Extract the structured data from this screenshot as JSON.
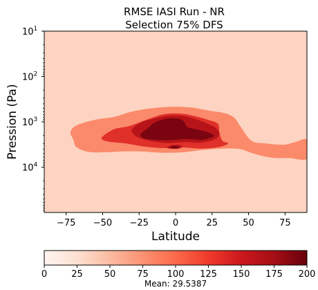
{
  "chart_data": {
    "type": "heatmap",
    "title": "RMSE  IASI Run - NR",
    "subtitle": "Selection 75% DFS",
    "xlabel": "Latitude",
    "ylabel": "Pression (Pa)",
    "x_ticks": [
      -75,
      -50,
      -25,
      0,
      25,
      50,
      75
    ],
    "x_tick_labels": [
      "−75",
      "−50",
      "−25",
      "0",
      "25",
      "50",
      "75"
    ],
    "xlim": [
      -90,
      90
    ],
    "y_scale": "log",
    "y_inverted": true,
    "ylim": [
      10,
      100000
    ],
    "y_ticks": [
      {
        "value": 10,
        "base": "10",
        "exp": "1"
      },
      {
        "value": 100,
        "base": "10",
        "exp": "2"
      },
      {
        "value": 1000,
        "base": "10",
        "exp": "3"
      },
      {
        "value": 10000,
        "base": "10",
        "exp": "4"
      }
    ],
    "colorbar": {
      "min": 0,
      "max": 200,
      "ticks": [
        0,
        25,
        50,
        75,
        100,
        125,
        150,
        175,
        200
      ],
      "colormap": "Reds",
      "stops": [
        "#fff5f0",
        "#fee0d2",
        "#fcbba1",
        "#fc9272",
        "#fb6a4a",
        "#ef3b2c",
        "#cb181d",
        "#a50f15",
        "#67000d"
      ]
    },
    "contour_levels": [
      {
        "level": 25,
        "color": "#fdd4c2"
      },
      {
        "level": 75,
        "color": "#fb8a6a"
      },
      {
        "level": 125,
        "color": "#e0302a"
      },
      {
        "level": 150,
        "color": "#b71419"
      },
      {
        "level": 175,
        "color": "#7a0510"
      }
    ],
    "background_level_color": "#fdd4c2",
    "contours": [
      {
        "level": 75,
        "points": [
          [
            -72,
            1700
          ],
          [
            -68,
            1200
          ],
          [
            -55,
            900
          ],
          [
            -42,
            780
          ],
          [
            -32,
            620
          ],
          [
            -20,
            520
          ],
          [
            -5,
            470
          ],
          [
            10,
            480
          ],
          [
            22,
            560
          ],
          [
            33,
            640
          ],
          [
            40,
            800
          ],
          [
            44,
            1200
          ],
          [
            52,
            2600
          ],
          [
            62,
            3000
          ],
          [
            74,
            3200
          ],
          [
            82,
            2800
          ],
          [
            90,
            2500
          ],
          [
            90,
            6500
          ],
          [
            78,
            6300
          ],
          [
            66,
            6200
          ],
          [
            54,
            5100
          ],
          [
            44,
            4000
          ],
          [
            32,
            3900
          ],
          [
            18,
            4200
          ],
          [
            5,
            4700
          ],
          [
            -10,
            4800
          ],
          [
            -24,
            4500
          ],
          [
            -36,
            4500
          ],
          [
            -48,
            4700
          ],
          [
            -60,
            4600
          ],
          [
            -68,
            3600
          ],
          [
            -70,
            2500
          ]
        ]
      },
      {
        "level": 125,
        "points": [
          [
            -50,
            2100
          ],
          [
            -42,
            1450
          ],
          [
            -32,
            1250
          ],
          [
            -20,
            900
          ],
          [
            -8,
            680
          ],
          [
            4,
            660
          ],
          [
            14,
            760
          ],
          [
            22,
            900
          ],
          [
            29,
            1100
          ],
          [
            30,
            1700
          ],
          [
            32,
            2600
          ],
          [
            36,
            3000
          ],
          [
            30,
            3600
          ],
          [
            18,
            3900
          ],
          [
            6,
            3700
          ],
          [
            -8,
            3800
          ],
          [
            -22,
            3500
          ],
          [
            -34,
            3000
          ],
          [
            -44,
            2800
          ],
          [
            -50,
            2500
          ]
        ]
      },
      {
        "level": 150,
        "points": [
          [
            -30,
            1500
          ],
          [
            -24,
            1050
          ],
          [
            -15,
            850
          ],
          [
            -4,
            730
          ],
          [
            6,
            750
          ],
          [
            14,
            880
          ],
          [
            22,
            1100
          ],
          [
            28,
            1400
          ],
          [
            30,
            1900
          ],
          [
            26,
            2500
          ],
          [
            16,
            2900
          ],
          [
            6,
            2800
          ],
          [
            -6,
            2950
          ],
          [
            -18,
            2600
          ],
          [
            -27,
            2100
          ]
        ]
      },
      {
        "level": 175,
        "points": [
          [
            -24,
            1900
          ],
          [
            -18,
            1300
          ],
          [
            -14,
            1030
          ],
          [
            -6,
            850
          ],
          [
            2,
            850
          ],
          [
            6,
            1000
          ],
          [
            8,
            1300
          ],
          [
            16,
            1500
          ],
          [
            24,
            1800
          ],
          [
            26,
            2100
          ],
          [
            18,
            2500
          ],
          [
            8,
            2400
          ],
          [
            -4,
            2550
          ],
          [
            -14,
            2500
          ],
          [
            -21,
            2350
          ]
        ]
      },
      {
        "level": 150,
        "points": [
          [
            -6,
            3700
          ],
          [
            -2,
            3250
          ],
          [
            4,
            3300
          ],
          [
            3,
            3850
          ],
          [
            -2,
            3950
          ]
        ]
      },
      {
        "level": 175,
        "points": [
          [
            -4,
            3650
          ],
          [
            -1,
            3400
          ],
          [
            2,
            3500
          ],
          [
            1,
            3800
          ],
          [
            -2,
            3800
          ]
        ]
      }
    ],
    "mean_label": "Mean: 29.5387"
  }
}
